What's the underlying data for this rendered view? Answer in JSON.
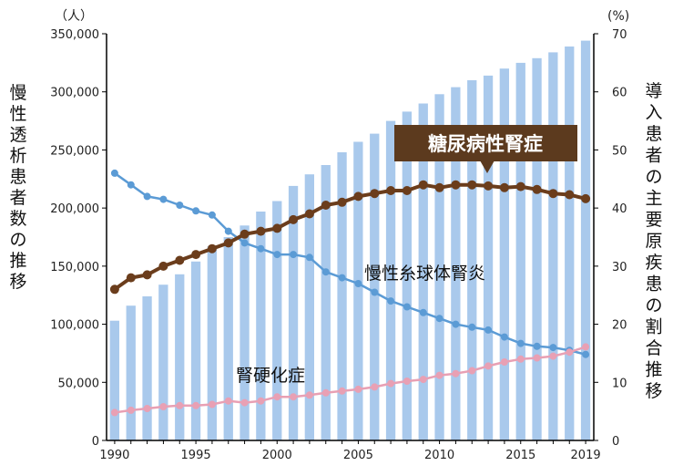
{
  "chart_data": {
    "type": "bar+line",
    "x": [
      1990,
      1991,
      1992,
      1993,
      1994,
      1995,
      1996,
      1997,
      1998,
      1999,
      2000,
      2001,
      2002,
      2003,
      2004,
      2005,
      2006,
      2007,
      2008,
      2009,
      2010,
      2011,
      2012,
      2013,
      2014,
      2015,
      2016,
      2017,
      2018,
      2019
    ],
    "x_ticks": [
      "1990",
      "1995",
      "2000",
      "2005",
      "2010",
      "2015",
      "2019"
    ],
    "y_left": {
      "label": "慢性透析患者数の推移",
      "unit": "（人）",
      "range": [
        0,
        350000
      ],
      "ticks": [
        "0",
        "50,000",
        "100,000",
        "150,000",
        "200,000",
        "250,000",
        "300,000",
        "350,000"
      ]
    },
    "y_right": {
      "label": "導入患者の主要原疾患の割合推移",
      "unit": "(%)",
      "range": [
        0,
        70
      ],
      "ticks": [
        "0",
        "10",
        "20",
        "30",
        "40",
        "50",
        "60",
        "70"
      ]
    },
    "bars": {
      "color": "#a9c9ec",
      "values": [
        103000,
        116000,
        124000,
        134000,
        143000,
        154000,
        167000,
        175000,
        185000,
        197000,
        206000,
        219000,
        229000,
        237000,
        248000,
        257000,
        264000,
        275000,
        283000,
        290000,
        298000,
        304000,
        310000,
        314000,
        320000,
        325000,
        329000,
        334000,
        339000,
        344000
      ]
    },
    "lines": [
      {
        "name": "糖尿病性腎症",
        "color": "#6b3d1c",
        "values": [
          26,
          28,
          28.5,
          30,
          31,
          32,
          33,
          34,
          35.5,
          36,
          36.5,
          38,
          39,
          40.5,
          41,
          42,
          42.5,
          43,
          43,
          44,
          43.5,
          44,
          44,
          43.8,
          43.5,
          43.7,
          43.2,
          42.5,
          42.3,
          41.6
        ]
      },
      {
        "name": "慢性糸球体腎炎",
        "color": "#5b9bd5",
        "values": [
          46,
          44,
          42,
          41.5,
          40.5,
          39.5,
          38.8,
          36,
          34,
          33,
          32,
          32,
          31.5,
          29,
          28,
          27,
          25.5,
          24,
          23,
          22,
          21,
          20,
          19.5,
          19,
          17.8,
          16.7,
          16.2,
          16,
          15.5,
          14.8
        ]
      },
      {
        "name": "腎硬化症",
        "color": "#e8a0b4",
        "values": [
          4.8,
          5.2,
          5.5,
          5.8,
          6,
          6,
          6.2,
          6.8,
          6.5,
          6.8,
          7.5,
          7.5,
          7.8,
          8.2,
          8.5,
          8.8,
          9.2,
          9.8,
          10.2,
          10.5,
          11.2,
          11.5,
          12,
          12.8,
          13.5,
          14,
          14.2,
          14.5,
          15.2,
          16.1
        ]
      }
    ],
    "callout": "糖尿病性腎症",
    "legend": "inline"
  }
}
